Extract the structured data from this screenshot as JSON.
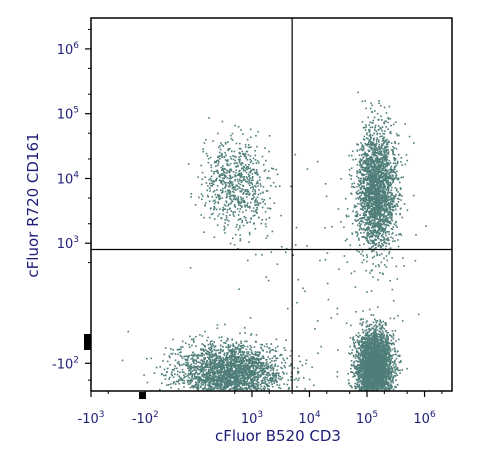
{
  "chart_data": {
    "type": "scatter",
    "plot_style": "flow-cytometry dot plot with quadrant gates",
    "xlabel": "cFluor B520 CD3",
    "ylabel": "cFluor R720 CD161",
    "x_scale": "biexponential",
    "y_scale": "biexponential",
    "xlim": [
      -1000,
      3000000
    ],
    "ylim": [
      -300,
      3000000
    ],
    "x_ticks": [
      {
        "label": "-10",
        "exp": "3",
        "value": -1000
      },
      {
        "label": "-10",
        "exp": "2",
        "value": -100
      },
      {
        "label": "10",
        "exp": "3",
        "value": 1000
      },
      {
        "label": "10",
        "exp": "4",
        "value": 10000
      },
      {
        "label": "10",
        "exp": "5",
        "value": 100000
      },
      {
        "label": "10",
        "exp": "6",
        "value": 1000000
      }
    ],
    "y_ticks": [
      {
        "label": "-10",
        "exp": "2",
        "value": -100
      },
      {
        "label": "10",
        "exp": "3",
        "value": 1000
      },
      {
        "label": "10",
        "exp": "4",
        "value": 10000
      },
      {
        "label": "10",
        "exp": "5",
        "value": 100000
      },
      {
        "label": "10",
        "exp": "6",
        "value": 1000000
      }
    ],
    "quadrant_gates": {
      "x": 5000,
      "y": 800
    },
    "grid": false,
    "legend": "none",
    "dot_color": "#4f7e7a",
    "line_color": "#000000",
    "text_color": "#1e1e78",
    "populations": [
      {
        "region": "CD3- CD161-",
        "x_center": 400,
        "y_center": -150,
        "density": "high"
      },
      {
        "region": "CD3- CD161+",
        "x_center": 500,
        "y_center": 8000,
        "density": "medium"
      },
      {
        "region": "CD3+ CD161-",
        "x_center": 130000,
        "y_center": -120,
        "density": "very high"
      },
      {
        "region": "CD3+ CD161+",
        "x_center": 140000,
        "y_center": 7000,
        "density": "high"
      }
    ]
  }
}
